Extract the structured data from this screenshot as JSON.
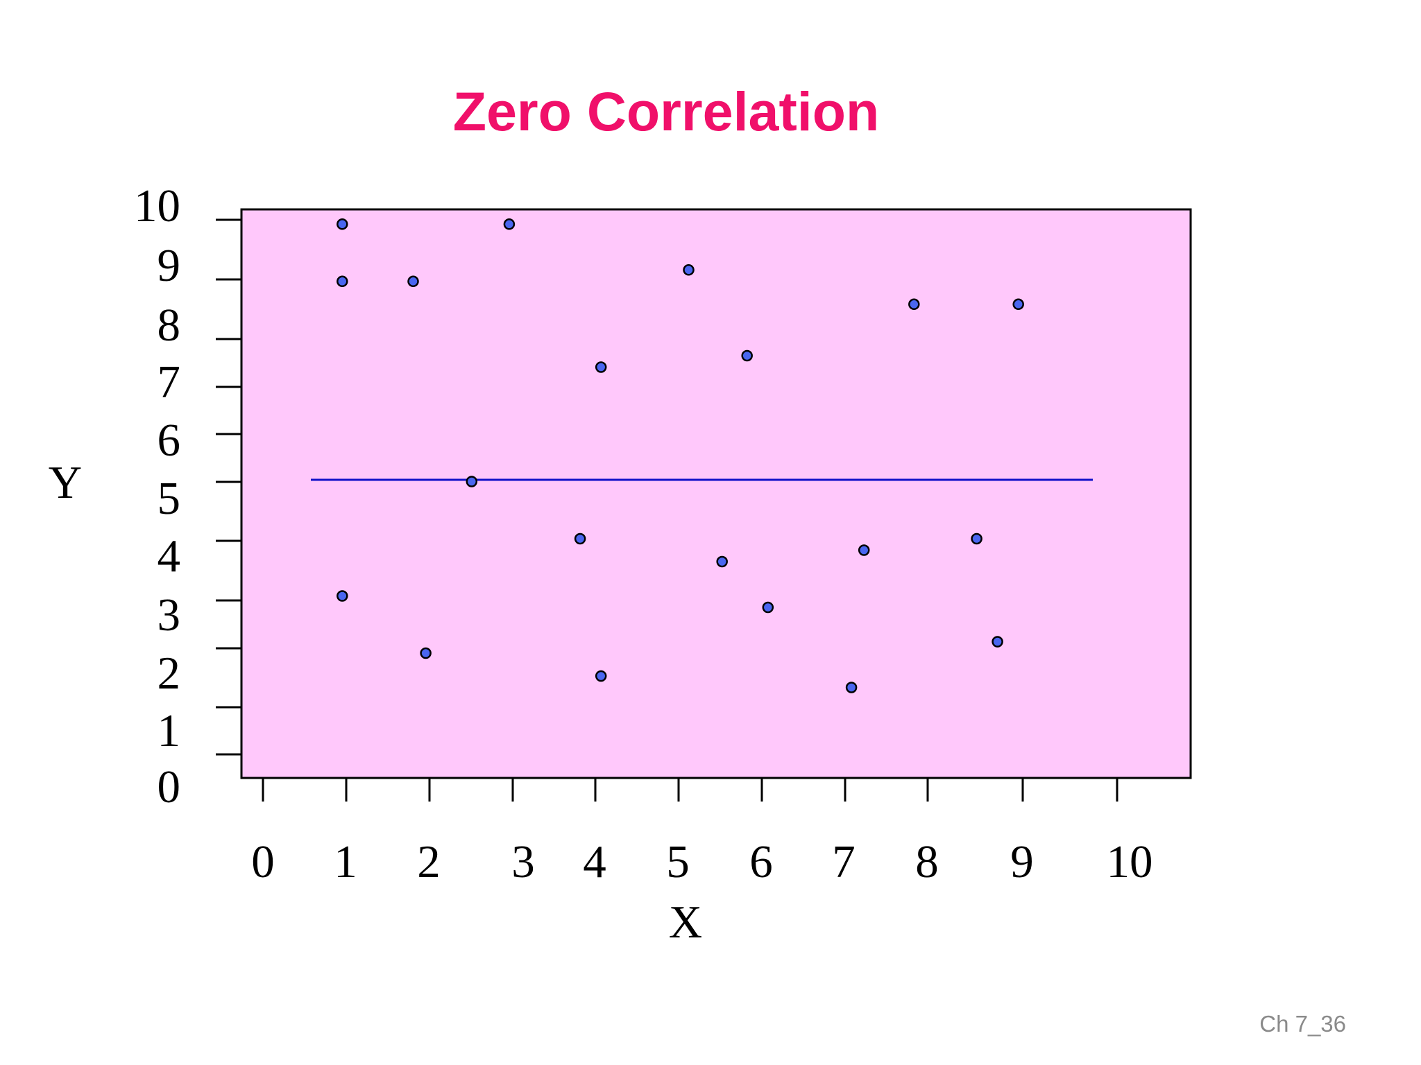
{
  "slide": {
    "footer": "Ch 7_36"
  },
  "colors": {
    "title": "#f0106a",
    "plot_background": "#ffc8fb",
    "point_fill": "#4a66f0",
    "point_stroke": "#000000",
    "trend_line": "#1010c8",
    "axis": "#000000"
  },
  "chart_data": {
    "type": "scatter",
    "title": "Zero Correlation",
    "xlabel": "X",
    "ylabel": "Y",
    "xlim": [
      0,
      10
    ],
    "ylim": [
      0,
      10
    ],
    "x_ticks": [
      "0",
      "1",
      "2",
      "3",
      "4",
      "5",
      "6",
      "7",
      "8",
      "9",
      "10"
    ],
    "y_ticks": [
      "0",
      "1",
      "2",
      "3",
      "4",
      "5",
      "6",
      "7",
      "8",
      "9",
      "10"
    ],
    "grid": false,
    "series": [
      {
        "points": [
          {
            "x": 0.95,
            "y": 9.9
          },
          {
            "x": 2.95,
            "y": 9.9
          },
          {
            "x": 0.95,
            "y": 8.9
          },
          {
            "x": 1.8,
            "y": 8.9
          },
          {
            "x": 5.1,
            "y": 9.1
          },
          {
            "x": 7.8,
            "y": 8.5
          },
          {
            "x": 9.05,
            "y": 8.5
          },
          {
            "x": 4.05,
            "y": 7.4
          },
          {
            "x": 5.8,
            "y": 7.6
          },
          {
            "x": 2.5,
            "y": 5.4
          },
          {
            "x": 3.8,
            "y": 4.4
          },
          {
            "x": 5.5,
            "y": 4.0
          },
          {
            "x": 7.2,
            "y": 4.2
          },
          {
            "x": 8.55,
            "y": 4.4
          },
          {
            "x": 0.95,
            "y": 3.4
          },
          {
            "x": 6.05,
            "y": 3.2
          },
          {
            "x": 1.95,
            "y": 2.4
          },
          {
            "x": 8.8,
            "y": 2.6
          },
          {
            "x": 4.05,
            "y": 2.0
          },
          {
            "x": 7.05,
            "y": 1.8
          }
        ]
      }
    ],
    "trend_line": {
      "x_start": 0.55,
      "x_end": 9.75,
      "y": 5.0
    }
  }
}
